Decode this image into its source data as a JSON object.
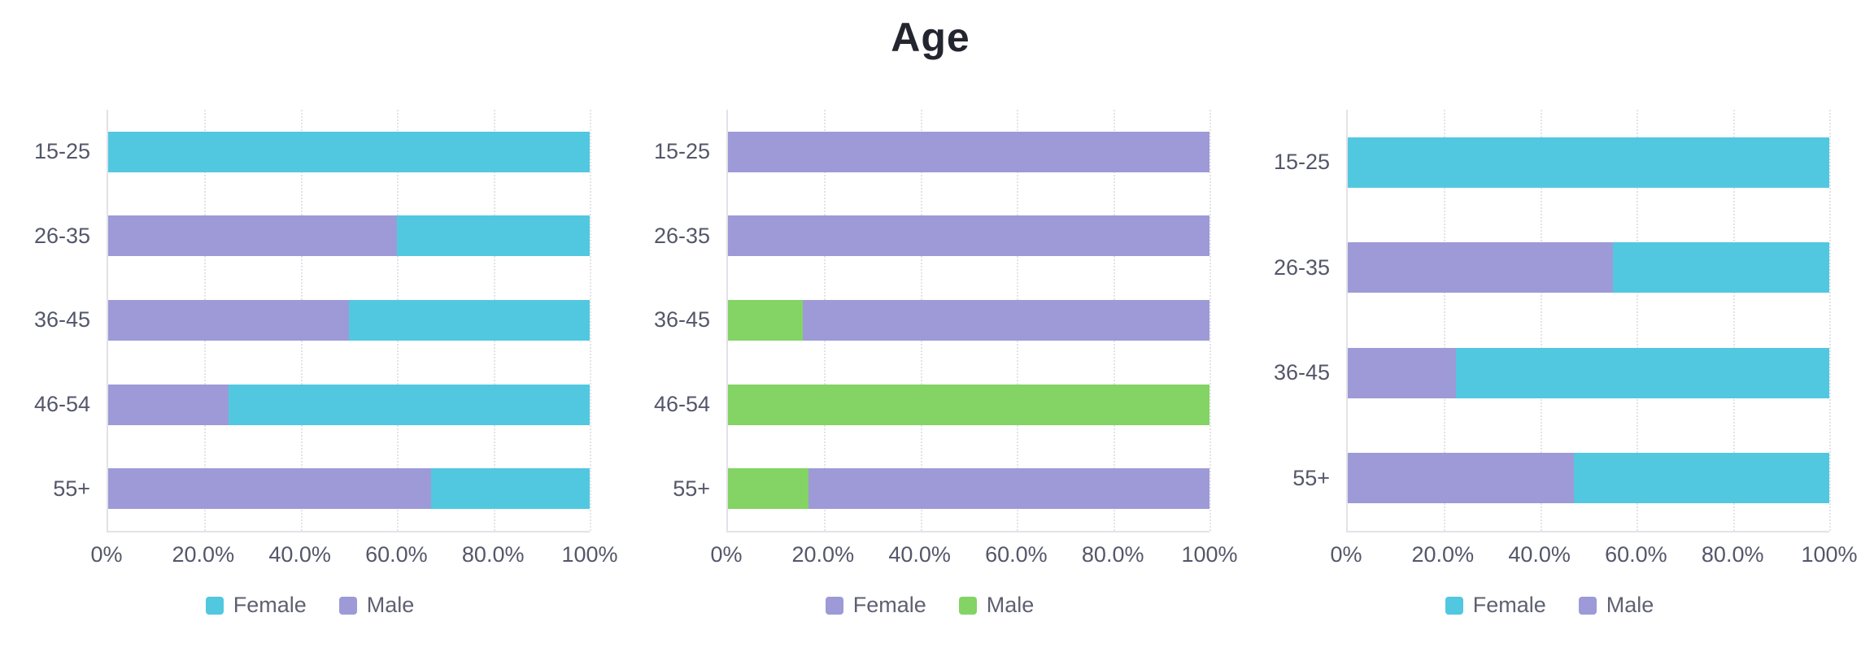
{
  "title": "Age",
  "colors": {
    "female_cyan": "#51C8E0",
    "male_purple": "#9D9AD7",
    "female_purple": "#9D9AD7",
    "male_green": "#84D365",
    "grid": "#E2E3EA",
    "axis_border": "#E2E2E8",
    "label_text": "#54576A",
    "legend_text": "#5E6172",
    "title_text": "#23252F",
    "background": "#FFFFFF"
  },
  "chart_data": [
    {
      "type": "bar",
      "orientation": "horizontal",
      "stacked": true,
      "stack_order": "left-to-right",
      "categories": [
        "15-25",
        "26-35",
        "36-45",
        "46-54",
        "55+"
      ],
      "series": [
        {
          "name": "Male",
          "color": "#9D9AD7",
          "values": [
            0,
            60,
            50,
            25,
            67
          ]
        },
        {
          "name": "Female",
          "color": "#51C8E0",
          "values": [
            100,
            40,
            50,
            75,
            33
          ]
        }
      ],
      "legend": [
        {
          "label": "Female",
          "color": "#51C8E0"
        },
        {
          "label": "Male",
          "color": "#9D9AD7"
        }
      ],
      "xlim": [
        0,
        100
      ],
      "x_ticks": [
        "0%",
        "20.0%",
        "40.0%",
        "60.0%",
        "80.0%",
        "100%"
      ],
      "grid": "dotted-vertical",
      "legend_position": "bottom"
    },
    {
      "type": "bar",
      "orientation": "horizontal",
      "stacked": true,
      "stack_order": "left-to-right",
      "categories": [
        "15-25",
        "26-35",
        "36-45",
        "46-54",
        "55+"
      ],
      "series": [
        {
          "name": "Male",
          "color": "#84D365",
          "values": [
            0,
            0,
            15.6,
            100,
            16.7
          ]
        },
        {
          "name": "Female",
          "color": "#9D9AD7",
          "values": [
            100,
            100,
            84.4,
            0,
            83.3
          ]
        }
      ],
      "legend": [
        {
          "label": "Female",
          "color": "#9D9AD7"
        },
        {
          "label": "Male",
          "color": "#84D365"
        }
      ],
      "xlim": [
        0,
        100
      ],
      "x_ticks": [
        "0%",
        "20.0%",
        "40.0%",
        "60.0%",
        "80.0%",
        "100%"
      ],
      "grid": "dotted-vertical",
      "legend_position": "bottom"
    },
    {
      "type": "bar",
      "orientation": "horizontal",
      "stacked": true,
      "stack_order": "left-to-right",
      "categories": [
        "15-25",
        "26-35",
        "36-45",
        "55+"
      ],
      "series": [
        {
          "name": "Male",
          "color": "#9D9AD7",
          "values": [
            0,
            55,
            22.4,
            47
          ]
        },
        {
          "name": "Female",
          "color": "#51C8E0",
          "values": [
            100,
            45,
            77.6,
            53
          ]
        }
      ],
      "legend": [
        {
          "label": "Female",
          "color": "#51C8E0"
        },
        {
          "label": "Male",
          "color": "#9D9AD7"
        }
      ],
      "xlim": [
        0,
        100
      ],
      "x_ticks": [
        "0%",
        "20.0%",
        "40.0%",
        "60.0%",
        "80.0%",
        "100%"
      ],
      "grid": "dotted-vertical",
      "legend_position": "bottom"
    }
  ]
}
